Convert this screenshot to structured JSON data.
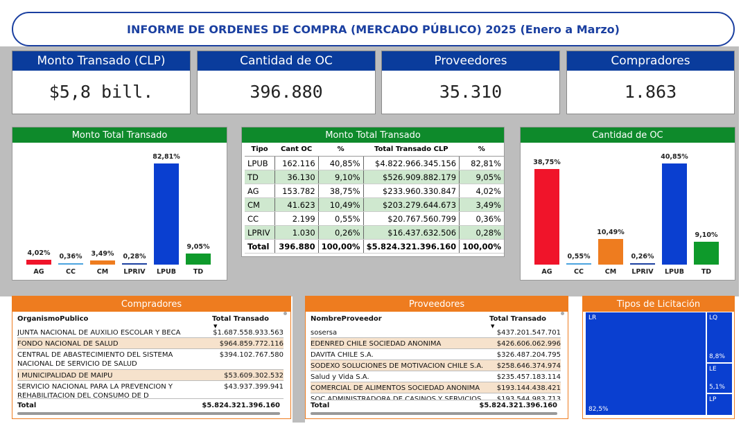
{
  "title": "INFORME DE ORDENES DE COMPRA (MERCADO PÚBLICO) 2025 (Enero a Marzo)",
  "kpis": [
    {
      "label": "Monto Transado (CLP)",
      "value": "$5,8 bill."
    },
    {
      "label": "Cantidad de OC",
      "value": "396.880"
    },
    {
      "label": "Proveedores",
      "value": "35.310"
    },
    {
      "label": "Compradores",
      "value": "1.863"
    }
  ],
  "colors": {
    "blue": "#0a3c9c",
    "green": "#0e8a2b",
    "orange": "#ee7c1f",
    "red": "#f0142a",
    "bar_blue": "#0a3fd0",
    "bar_green": "#0e9a2b",
    "bar_orange": "#ee7c1f",
    "bar_lightblue": "#4aa3df"
  },
  "chart_data": [
    {
      "type": "bar",
      "title": "Monto Total Transado",
      "categories": [
        "AG",
        "CC",
        "CM",
        "LPRIV",
        "LPUB",
        "TD"
      ],
      "values": [
        4.02,
        0.36,
        3.49,
        0.28,
        82.81,
        9.05
      ],
      "value_labels": [
        "4,02%",
        "0,36%",
        "3,49%",
        "0,28%",
        "82,81%",
        "9,05%"
      ],
      "colors": [
        "#f0142a",
        "#4aa3df",
        "#ee7c1f",
        "#1a3fa0",
        "#0a3fd0",
        "#0e9a2b"
      ],
      "ylim": [
        0,
        82.81
      ]
    },
    {
      "type": "bar",
      "title": "Cantidad de OC",
      "categories": [
        "AG",
        "CC",
        "CM",
        "LPRIV",
        "LPUB",
        "TD"
      ],
      "values": [
        38.75,
        0.55,
        10.49,
        0.26,
        40.85,
        9.1
      ],
      "value_labels": [
        "38,75%",
        "0,55%",
        "10,49%",
        "0,26%",
        "40,85%",
        "9,10%"
      ],
      "colors": [
        "#f0142a",
        "#4aa3df",
        "#ee7c1f",
        "#1a3fa0",
        "#0a3fd0",
        "#0e9a2b"
      ],
      "ylim": [
        0,
        40.85
      ]
    }
  ],
  "table": {
    "title": "Monto Total Transado",
    "headers": [
      "Tipo",
      "Cant OC",
      "%",
      "Total Transado CLP",
      "%"
    ],
    "rows": [
      {
        "tipo": "LPUB",
        "cant": "162.116",
        "p1": "40,85%",
        "total": "$4.822.966.345.156",
        "p2": "82,81%",
        "hl": false
      },
      {
        "tipo": "TD",
        "cant": "36.130",
        "p1": "9,10%",
        "total": "$526.909.882.179",
        "p2": "9,05%",
        "hl": true
      },
      {
        "tipo": "AG",
        "cant": "153.782",
        "p1": "38,75%",
        "total": "$233.960.330.847",
        "p2": "4,02%",
        "hl": false
      },
      {
        "tipo": "CM",
        "cant": "41.623",
        "p1": "10,49%",
        "total": "$203.279.644.673",
        "p2": "3,49%",
        "hl": true
      },
      {
        "tipo": "CC",
        "cant": "2.199",
        "p1": "0,55%",
        "total": "$20.767.560.799",
        "p2": "0,36%",
        "hl": false
      },
      {
        "tipo": "LPRIV",
        "cant": "1.030",
        "p1": "0,26%",
        "total": "$16.437.632.506",
        "p2": "0,28%",
        "hl": true
      }
    ],
    "total": {
      "tipo": "Total",
      "cant": "396.880",
      "p1": "100,00%",
      "total": "$5.824.321.396.160",
      "p2": "100,00%"
    }
  },
  "compradores": {
    "title": "Compradores",
    "col1": "OrganismoPublico",
    "col2": "Total Transado",
    "rows": [
      {
        "name": "JUNTA NACIONAL DE AUXILIO ESCOLAR Y BECA",
        "value": "$1.687.558.933.563"
      },
      {
        "name": "FONDO NACIONAL DE SALUD",
        "value": "$964.859.772.116"
      },
      {
        "name": "CENTRAL DE ABASTECIMIENTO DEL SISTEMA NACIONAL DE SERVICIO DE SALUD",
        "value": "$394.102.767.580"
      },
      {
        "name": "I MUNICIPALIDAD DE MAIPU",
        "value": "$53.609.302.532"
      },
      {
        "name": "SERVICIO NACIONAL PARA LA PREVENCION Y REHABILITACION DEL CONSUMO DE D",
        "value": "$43.937.399.941"
      }
    ],
    "total_label": "Total",
    "total_value": "$5.824.321.396.160"
  },
  "proveedores": {
    "title": "Proveedores",
    "col1": "NombreProveedor",
    "col2": "Total Transado",
    "rows": [
      {
        "name": "sosersa",
        "value": "$437.201.547.701"
      },
      {
        "name": "EDENRED CHILE SOCIEDAD ANONIMA",
        "value": "$426.606.062.996"
      },
      {
        "name": "DAVITA CHILE S.A.",
        "value": "$326.487.204.795"
      },
      {
        "name": "SODEXO SOLUCIONES DE MOTIVACION CHILE S.A.",
        "value": "$258.646.374.974"
      },
      {
        "name": "Salud y Vida S.A.",
        "value": "$235.457.183.114"
      },
      {
        "name": "COMERCIAL DE ALIMENTOS SOCIEDAD ANONIMA",
        "value": "$193.144.438.421"
      },
      {
        "name": "SOC ADMINISTRADORA DE CASINOS Y SERVICIOS",
        "value": "$193.544.983.713"
      }
    ],
    "total_label": "Total",
    "total_value": "$5.824.321.396.160"
  },
  "licitacion": {
    "title": "Tipos de Licitación",
    "cells": [
      {
        "code": "LR",
        "pct": "82,5%"
      },
      {
        "code": "LQ",
        "pct": "8,8%"
      },
      {
        "code": "LE",
        "pct": "5,1%"
      },
      {
        "code": "LP",
        "pct": ""
      }
    ]
  }
}
